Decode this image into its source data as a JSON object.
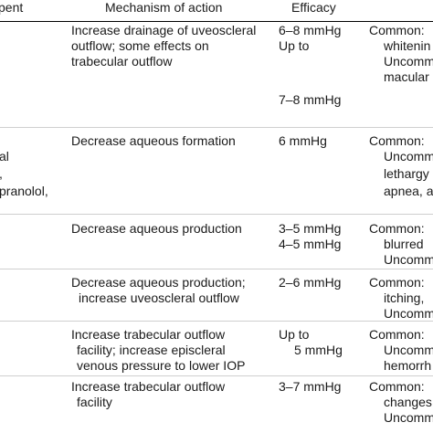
{
  "headers": {
    "agent": "pent",
    "mechanism": "Mechanism of action",
    "efficacy": "Efficacy"
  },
  "rows": [
    {
      "agent": [],
      "mechanism": [
        "Increase drainage of uveoscleral",
        "outflow; some effects on",
        "trabecular outflow"
      ],
      "efficacy": [
        "6–8 mmHg",
        "Up to",
        "",
        "",
        "7–8 mmHg"
      ],
      "effects": [
        "Common:",
        "whitenin",
        "Uncomm",
        "macular"
      ]
    },
    {
      "agent": [
        "al",
        ",",
        "pranolol,"
      ],
      "mechanism": [
        "Decrease aqueous formation"
      ],
      "efficacy": [
        "6 mmHg"
      ],
      "effects": [
        "Common:",
        "Uncomm",
        "lethargy",
        "apnea, a"
      ]
    },
    {
      "agent": [],
      "mechanism": [
        "Decrease aqueous production"
      ],
      "efficacy": [
        "3–5 mmHg",
        "4–5 mmHg"
      ],
      "effects": [
        "Common:",
        "blurred",
        "Uncomm"
      ]
    },
    {
      "agent": [],
      "mechanism": [
        "Decrease aqueous production;",
        "increase uveoscleral outflow"
      ],
      "efficacy": [
        "2–6 mmHg"
      ],
      "effects": [
        "Common:",
        "itching,",
        "Uncomm"
      ]
    },
    {
      "agent": [],
      "mechanism": [
        "Increase trabecular outflow",
        "facility; increase episcleral",
        "venous pressure to lower IOP"
      ],
      "efficacy": [
        "Up to",
        "5 mmHg"
      ],
      "effects": [
        "Common:",
        "Uncomm",
        "hemorrh"
      ]
    },
    {
      "agent": [],
      "mechanism": [
        "Increase trabecular outflow",
        "facility"
      ],
      "efficacy": [
        "3–7 mmHg"
      ],
      "effects": [
        "Common:",
        "changes",
        "Uncomm"
      ]
    }
  ]
}
